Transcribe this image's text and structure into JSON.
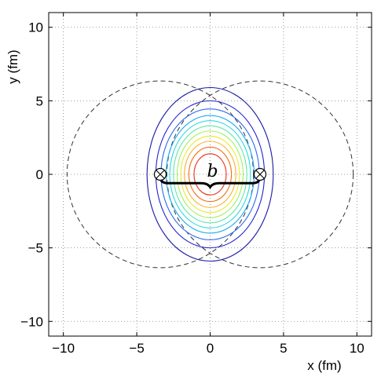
{
  "chart_data": {
    "type": "contour",
    "title": "",
    "xlabel": "x (fm)",
    "ylabel": "y (fm)",
    "xlim": [
      -11,
      11
    ],
    "ylim": [
      -11,
      11
    ],
    "xticks": [
      -10,
      -5,
      0,
      5,
      10
    ],
    "yticks": [
      -10,
      -5,
      0,
      5,
      10
    ],
    "xtick_labels": [
      "−10",
      "−5",
      "0",
      "5",
      "10"
    ],
    "ytick_labels": [
      "−10",
      "−5",
      "0",
      "5",
      "10"
    ],
    "grid": true,
    "grid_style": "dotted",
    "nuclei": [
      {
        "cx": -3.4,
        "cy": 0,
        "r": 6.35,
        "style": "dashed"
      },
      {
        "cx": 3.4,
        "cy": 0,
        "r": 6.35,
        "style": "dashed"
      }
    ],
    "nucleus_centers": [
      {
        "x": -3.4,
        "y": 0,
        "marker": "circle-x"
      },
      {
        "x": 3.4,
        "y": 0,
        "marker": "circle-x"
      }
    ],
    "contours": [
      {
        "rx": 4.3,
        "ry": 5.9,
        "color": "#1a1aa8"
      },
      {
        "rx": 3.7,
        "ry": 5.0,
        "color": "#2222d0"
      },
      {
        "rx": 3.35,
        "ry": 4.45,
        "color": "#2a6af0"
      },
      {
        "rx": 3.0,
        "ry": 4.0,
        "color": "#1aaaf0"
      },
      {
        "rx": 2.75,
        "ry": 3.65,
        "color": "#30d8e0"
      },
      {
        "rx": 2.5,
        "ry": 3.3,
        "color": "#5ce8a8"
      },
      {
        "rx": 2.25,
        "ry": 2.95,
        "color": "#a0f060"
      },
      {
        "rx": 2.0,
        "ry": 2.6,
        "color": "#e8e830"
      },
      {
        "rx": 1.75,
        "ry": 2.25,
        "color": "#f8b030"
      },
      {
        "rx": 1.45,
        "ry": 1.85,
        "color": "#f07018"
      },
      {
        "rx": 1.1,
        "ry": 1.4,
        "color": "#e83018"
      }
    ],
    "impact_parameter": {
      "label": "b",
      "from": -3.4,
      "to": 3.4,
      "y": -0.6
    }
  },
  "colors": {
    "axis": "#000000",
    "grid": "#7f7f7f",
    "nucleus_outline": "#333333",
    "brace": "#000000"
  }
}
